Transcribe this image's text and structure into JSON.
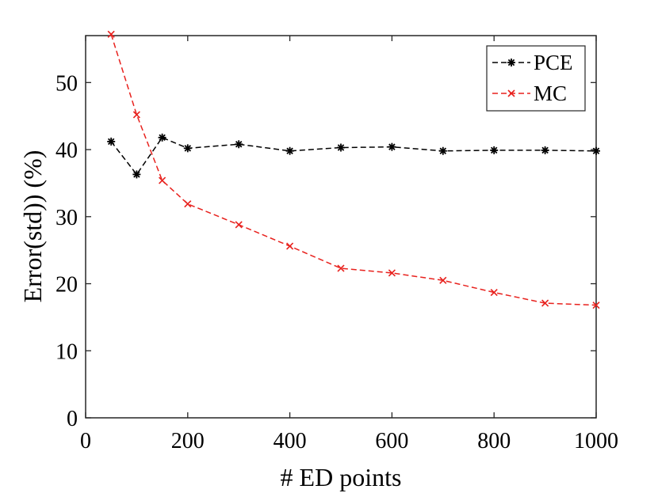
{
  "chart_data": {
    "type": "line",
    "title": "",
    "xlabel": "# ED points",
    "ylabel": "Error(std)) (%)",
    "xlim": [
      0,
      1000
    ],
    "ylim": [
      0,
      57
    ],
    "xticks": [
      0,
      200,
      400,
      600,
      800,
      1000
    ],
    "yticks": [
      0,
      10,
      20,
      30,
      40,
      50
    ],
    "grid": false,
    "legend_position": "top-right",
    "x": [
      50,
      100,
      150,
      200,
      300,
      400,
      500,
      600,
      700,
      800,
      900,
      1000
    ],
    "series": [
      {
        "name": "PCE",
        "color": "#000000",
        "marker": "asterisk",
        "line_style": "dashed",
        "values": [
          41.2,
          36.3,
          41.8,
          40.2,
          40.8,
          39.8,
          40.3,
          40.4,
          39.8,
          39.9,
          39.9,
          39.8
        ]
      },
      {
        "name": "MC",
        "color": "#e8211d",
        "marker": "x",
        "line_style": "dashed",
        "values": [
          57.2,
          45.2,
          35.4,
          31.9,
          28.8,
          25.6,
          22.3,
          21.6,
          20.5,
          18.7,
          17.1,
          16.8
        ]
      }
    ]
  }
}
